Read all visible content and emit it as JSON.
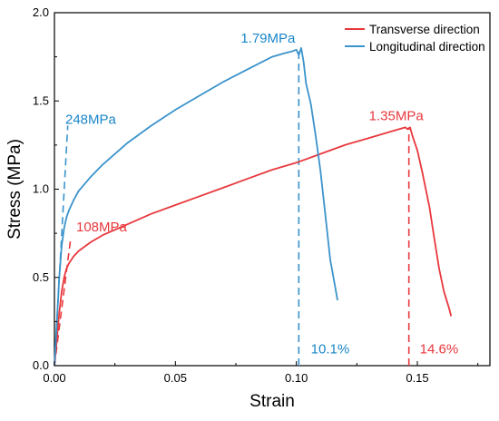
{
  "chart_data": {
    "type": "line",
    "xlabel": "Strain",
    "ylabel": "Stress (MPa)",
    "xlim": [
      0,
      0.18
    ],
    "ylim": [
      0,
      2.0
    ],
    "x_ticks": [
      "0.00",
      "0.05",
      "0.10",
      "0.15"
    ],
    "y_ticks": [
      "0.0",
      "0.5",
      "1.0",
      "1.5",
      "2.0"
    ],
    "x_tick_values": [
      0,
      0.05,
      0.1,
      0.15
    ],
    "y_tick_values": [
      0,
      0.5,
      1.0,
      1.5,
      2.0
    ],
    "grid": false,
    "legend_position": "top-right",
    "series": [
      {
        "name": "Transverse direction",
        "color": "#e8383d",
        "x": [
          0,
          0.001,
          0.002,
          0.003,
          0.004,
          0.005,
          0.006,
          0.008,
          0.01,
          0.015,
          0.02,
          0.03,
          0.04,
          0.05,
          0.06,
          0.07,
          0.08,
          0.09,
          0.1,
          0.11,
          0.12,
          0.13,
          0.14,
          0.145,
          0.146,
          0.147,
          0.148,
          0.15,
          0.152,
          0.155,
          0.157,
          0.159,
          0.161,
          0.163,
          0.164
        ],
        "y": [
          0,
          0.15,
          0.3,
          0.42,
          0.5,
          0.55,
          0.58,
          0.62,
          0.65,
          0.7,
          0.74,
          0.8,
          0.86,
          0.91,
          0.96,
          1.01,
          1.06,
          1.11,
          1.15,
          1.2,
          1.25,
          1.29,
          1.33,
          1.35,
          1.34,
          1.35,
          1.3,
          1.22,
          1.1,
          0.9,
          0.72,
          0.55,
          0.42,
          0.33,
          0.28
        ]
      },
      {
        "name": "Longitudinal direction",
        "color": "#3a93cb",
        "x": [
          0,
          0.001,
          0.002,
          0.003,
          0.004,
          0.005,
          0.006,
          0.008,
          0.01,
          0.015,
          0.02,
          0.03,
          0.04,
          0.05,
          0.06,
          0.07,
          0.08,
          0.09,
          0.095,
          0.098,
          0.1,
          0.101,
          0.102,
          0.103,
          0.104,
          0.106,
          0.108,
          0.11,
          0.112,
          0.114,
          0.116,
          0.117
        ],
        "y": [
          0,
          0.25,
          0.5,
          0.68,
          0.78,
          0.84,
          0.88,
          0.94,
          0.99,
          1.07,
          1.14,
          1.26,
          1.36,
          1.45,
          1.53,
          1.61,
          1.68,
          1.75,
          1.77,
          1.78,
          1.79,
          1.76,
          1.8,
          1.72,
          1.6,
          1.48,
          1.3,
          1.1,
          0.85,
          0.6,
          0.45,
          0.37
        ]
      }
    ],
    "reference_lines": [
      {
        "color": "#3a93cb",
        "from": [
          0.0,
          0.0
        ],
        "to": [
          0.0055,
          1.36
        ]
      },
      {
        "color": "#e8383d",
        "from": [
          0.0,
          0.0
        ],
        "to": [
          0.0068,
          0.73
        ]
      },
      {
        "color": "#3a93cb",
        "from": [
          0.101,
          0.0
        ],
        "to": [
          0.101,
          1.79
        ]
      },
      {
        "color": "#e8383d",
        "from": [
          0.1465,
          0.0
        ],
        "to": [
          0.1465,
          1.35
        ]
      }
    ],
    "annotations": [
      {
        "text": "248MPa",
        "color": "#1a86c8",
        "x": 0.0045,
        "y": 1.37
      },
      {
        "text": "108MPa",
        "color": "#e8383d",
        "x": 0.009,
        "y": 0.76
      },
      {
        "text": "1.79MPa",
        "color": "#1a86c8",
        "x": 0.077,
        "y": 1.83
      },
      {
        "text": "1.35MPa",
        "color": "#e8383d",
        "x": 0.13,
        "y": 1.39
      },
      {
        "text": "10.1%",
        "color": "#1a86c8",
        "x": 0.106,
        "y": 0.07
      },
      {
        "text": "14.6%",
        "color": "#e8383d",
        "x": 0.151,
        "y": 0.07
      }
    ]
  }
}
